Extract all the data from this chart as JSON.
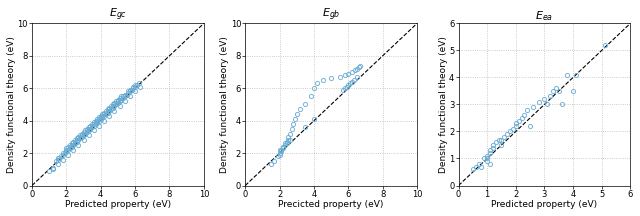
{
  "title_gc": "$E_{gc}$",
  "title_gb": "$E_{gb}$",
  "title_ea": "$E_{ea}$",
  "xlabel": "Predicted property (eV)",
  "xlabel_gb": "Precicted property (eV)",
  "ylabel": "Density functional theory (eV)",
  "xlim_gc": [
    0,
    10
  ],
  "ylim_gc": [
    0,
    10
  ],
  "xticks_gc": [
    0,
    2,
    4,
    6,
    8,
    10
  ],
  "yticks_gc": [
    0,
    2,
    4,
    6,
    8,
    10
  ],
  "xlim_gb": [
    0,
    10
  ],
  "ylim_gb": [
    0,
    10
  ],
  "xticks_gb": [
    0,
    2,
    4,
    6,
    8,
    10
  ],
  "yticks_gb": [
    0,
    2,
    4,
    6,
    8,
    10
  ],
  "xlim_ea": [
    0,
    6
  ],
  "ylim_ea": [
    0,
    6
  ],
  "xticks_ea": [
    0,
    1,
    2,
    3,
    4,
    5,
    6
  ],
  "yticks_ea": [
    0,
    1,
    2,
    3,
    4,
    5,
    6
  ],
  "marker_color": "#6aacd4",
  "marker_size": 3.0,
  "marker_edge_width": 0.7,
  "line_color": "black",
  "grid_color": "#bbbbbb",
  "background_color": "#ffffff",
  "gc_x": [
    1.0,
    1.2,
    1.4,
    1.5,
    1.6,
    1.7,
    1.8,
    1.9,
    2.0,
    2.0,
    2.1,
    2.1,
    2.2,
    2.2,
    2.3,
    2.3,
    2.4,
    2.4,
    2.5,
    2.5,
    2.6,
    2.6,
    2.7,
    2.7,
    2.8,
    2.8,
    2.9,
    2.9,
    3.0,
    3.0,
    3.1,
    3.1,
    3.2,
    3.2,
    3.3,
    3.3,
    3.4,
    3.4,
    3.5,
    3.5,
    3.6,
    3.6,
    3.7,
    3.7,
    3.8,
    3.8,
    3.9,
    3.9,
    4.0,
    4.0,
    4.1,
    4.1,
    4.2,
    4.2,
    4.3,
    4.3,
    4.4,
    4.4,
    4.5,
    4.5,
    4.6,
    4.6,
    4.7,
    4.7,
    4.8,
    4.8,
    4.9,
    4.9,
    5.0,
    5.0,
    5.1,
    5.1,
    5.2,
    5.2,
    5.3,
    5.4,
    5.5,
    5.6,
    5.7,
    5.8,
    5.9,
    6.0,
    6.1,
    6.2,
    1.5,
    1.8,
    2.2,
    2.5,
    2.7,
    3.0,
    3.3,
    3.6,
    3.9,
    4.2,
    4.5,
    4.8,
    5.1,
    5.4,
    5.7,
    6.0,
    2.0,
    2.3,
    2.6,
    2.9,
    3.2,
    3.5,
    3.8,
    4.1,
    4.4,
    4.7,
    5.0,
    5.3,
    5.6,
    5.9,
    1.2,
    1.5,
    1.8,
    2.1,
    2.4,
    2.7,
    3.0,
    3.3,
    3.6,
    3.9,
    4.2,
    4.5,
    4.8,
    5.1,
    5.4,
    5.7,
    6.0,
    6.3
  ],
  "gc_y": [
    0.9,
    1.1,
    1.5,
    1.6,
    1.7,
    1.8,
    1.9,
    2.0,
    2.1,
    2.3,
    2.2,
    2.4,
    2.3,
    2.5,
    2.4,
    2.6,
    2.5,
    2.7,
    2.6,
    2.8,
    2.7,
    2.9,
    2.8,
    3.0,
    2.9,
    3.1,
    3.0,
    3.2,
    3.1,
    3.3,
    3.2,
    3.4,
    3.3,
    3.5,
    3.4,
    3.6,
    3.5,
    3.7,
    3.6,
    3.8,
    3.7,
    3.9,
    3.8,
    4.0,
    3.9,
    4.1,
    4.0,
    4.2,
    4.1,
    4.3,
    4.2,
    4.4,
    4.3,
    4.5,
    4.4,
    4.6,
    4.5,
    4.7,
    4.6,
    4.8,
    4.7,
    4.9,
    4.8,
    5.0,
    4.9,
    5.1,
    5.0,
    5.2,
    5.1,
    5.3,
    5.2,
    5.4,
    5.3,
    5.5,
    5.4,
    5.5,
    5.6,
    5.7,
    5.8,
    5.9,
    6.0,
    6.1,
    6.2,
    6.3,
    1.7,
    2.0,
    2.3,
    2.6,
    2.9,
    3.2,
    3.5,
    3.8,
    4.1,
    4.4,
    4.7,
    5.0,
    5.3,
    5.6,
    5.9,
    6.2,
    2.2,
    2.5,
    2.8,
    3.1,
    3.4,
    3.7,
    4.0,
    4.3,
    4.6,
    4.9,
    5.2,
    5.5,
    5.8,
    6.1,
    1.0,
    1.3,
    1.6,
    1.9,
    2.2,
    2.5,
    2.8,
    3.1,
    3.4,
    3.7,
    4.0,
    4.3,
    4.6,
    4.9,
    5.2,
    5.5,
    5.8,
    6.1
  ],
  "gb_x": [
    1.5,
    1.7,
    1.9,
    2.0,
    2.0,
    2.1,
    2.1,
    2.2,
    2.2,
    2.3,
    2.3,
    2.4,
    2.5,
    2.5,
    2.6,
    2.7,
    2.8,
    2.9,
    3.0,
    3.2,
    3.5,
    3.8,
    4.0,
    4.2,
    4.5,
    5.0,
    5.5,
    5.8,
    6.0,
    6.2,
    6.4,
    6.5,
    6.6,
    6.7,
    2.0,
    2.2,
    2.4,
    2.6,
    3.5,
    4.0,
    5.8,
    6.0,
    6.2,
    6.5,
    6.3,
    6.1,
    5.9,
    5.7
  ],
  "gb_y": [
    1.3,
    1.5,
    1.8,
    1.9,
    2.0,
    2.1,
    2.2,
    2.3,
    2.4,
    2.5,
    2.6,
    2.7,
    2.8,
    3.0,
    3.2,
    3.5,
    3.8,
    4.1,
    4.4,
    4.7,
    5.0,
    5.5,
    6.0,
    6.3,
    6.5,
    6.6,
    6.7,
    6.8,
    6.9,
    7.0,
    7.1,
    7.2,
    7.3,
    7.4,
    2.2,
    2.4,
    2.6,
    2.8,
    3.6,
    4.1,
    6.0,
    6.2,
    6.4,
    6.7,
    6.5,
    6.3,
    6.1,
    5.9
  ],
  "ea_x": [
    0.5,
    0.6,
    0.7,
    0.8,
    0.9,
    1.0,
    1.0,
    1.0,
    1.1,
    1.1,
    1.1,
    1.2,
    1.2,
    1.3,
    1.4,
    1.5,
    1.5,
    1.6,
    1.7,
    1.8,
    1.9,
    2.0,
    2.0,
    2.1,
    2.2,
    2.3,
    2.4,
    2.5,
    2.6,
    2.8,
    3.0,
    3.1,
    3.2,
    3.3,
    3.4,
    3.5,
    3.6,
    3.8,
    4.0,
    4.1,
    5.1
  ],
  "ea_y": [
    0.6,
    0.7,
    0.8,
    0.7,
    1.0,
    1.0,
    1.1,
    0.9,
    1.2,
    1.3,
    0.8,
    1.4,
    1.5,
    1.6,
    1.7,
    1.5,
    1.7,
    1.8,
    1.9,
    2.0,
    2.1,
    2.2,
    2.3,
    2.4,
    2.5,
    2.6,
    2.8,
    2.2,
    2.9,
    3.1,
    3.2,
    3.0,
    3.3,
    3.5,
    3.6,
    3.5,
    3.0,
    4.1,
    3.5,
    4.1,
    5.2
  ]
}
